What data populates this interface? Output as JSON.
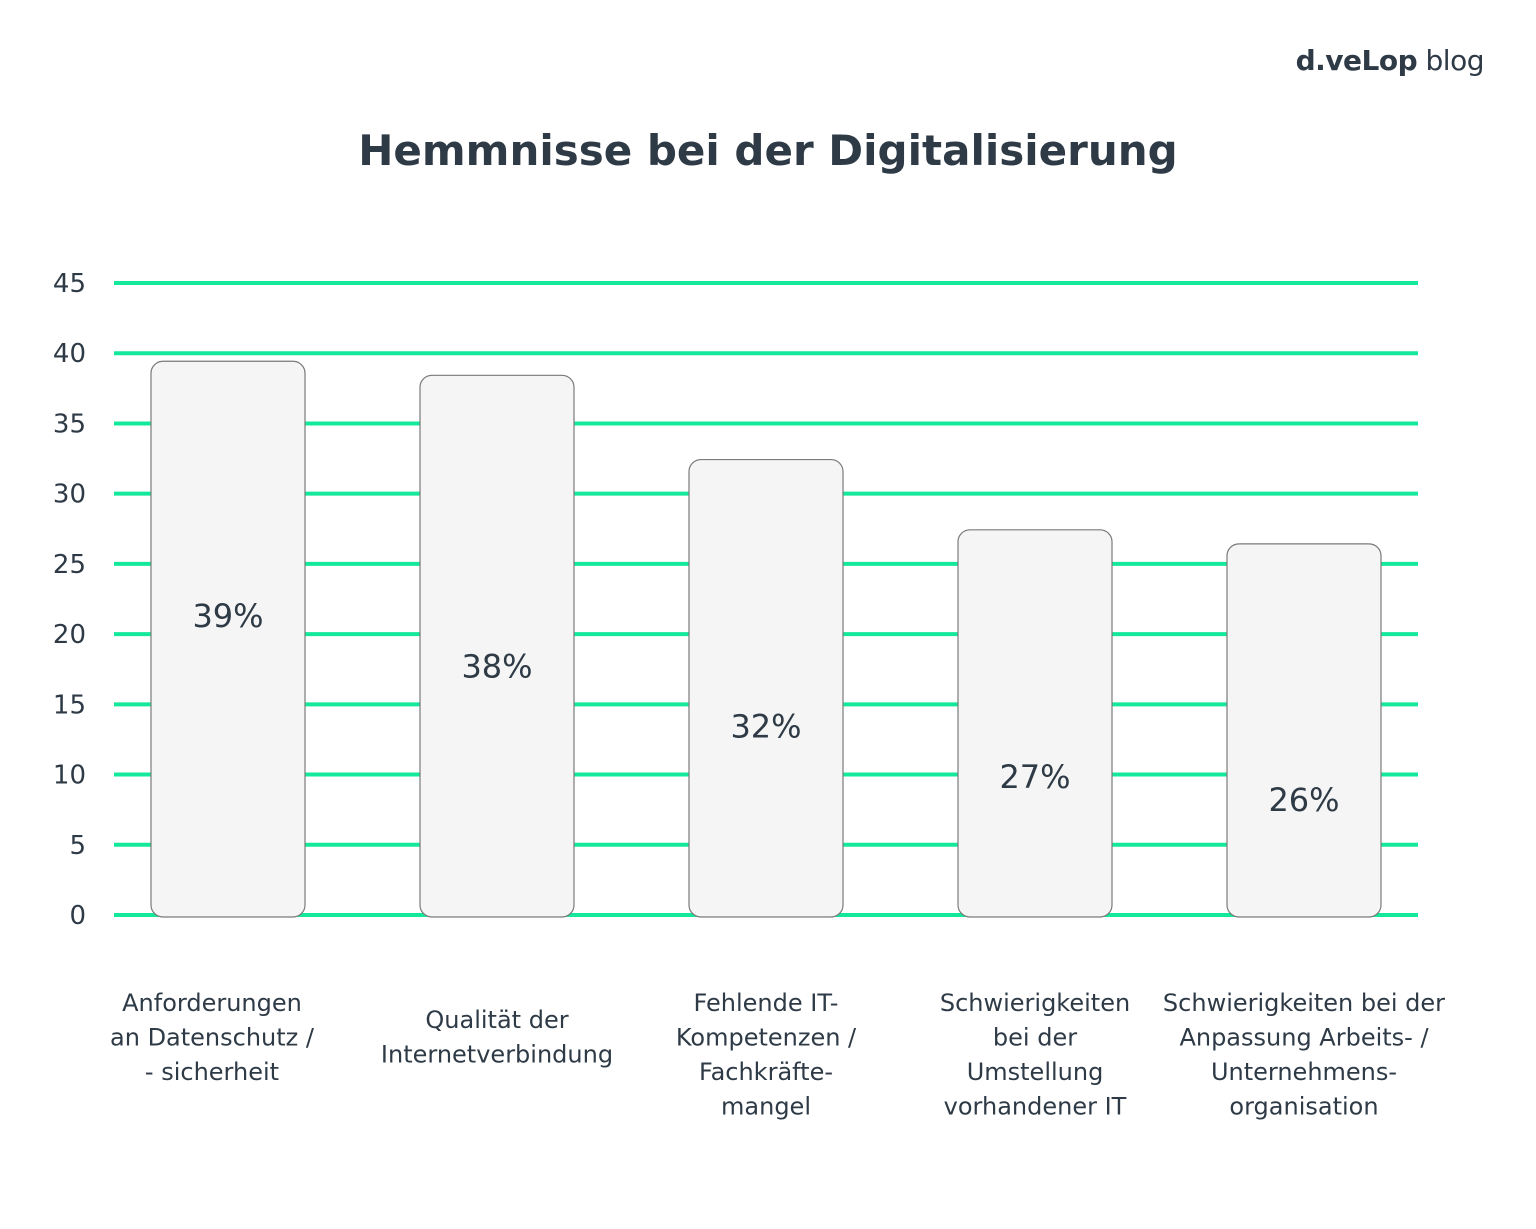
{
  "logo": {
    "brand": "d.veLop",
    "suffix": "blog"
  },
  "chart_data": {
    "type": "bar",
    "title": "Hemmnisse bei der Digitalisierung",
    "xlabel": "",
    "ylabel": "",
    "ylim": [
      0,
      45
    ],
    "yticks": [
      0,
      5,
      10,
      15,
      20,
      25,
      30,
      35,
      40,
      45
    ],
    "grid": true,
    "colors": {
      "grid": "#14e89a",
      "bar_fill": "#f5f5f5",
      "bar_stroke": "#7a7a7a",
      "text": "#2e3a46"
    },
    "categories": [
      [
        "Anforderungen",
        "an Datenschutz /",
        "- sicherheit"
      ],
      [
        "Qualität der",
        "Internetverbindung"
      ],
      [
        "Fehlende IT-",
        "Kompetenzen /",
        "Fachkräfte-",
        "mangel"
      ],
      [
        "Schwierigkeiten",
        "bei der",
        "Umstellung",
        "vorhandener IT"
      ],
      [
        "Schwierigkeiten bei der",
        "Anpassung Arbeits- /",
        "Unternehmens-",
        "organisation"
      ]
    ],
    "values": [
      39,
      38,
      32,
      27,
      26
    ],
    "data_labels": [
      "39%",
      "38%",
      "32%",
      "27%",
      "26%"
    ]
  }
}
